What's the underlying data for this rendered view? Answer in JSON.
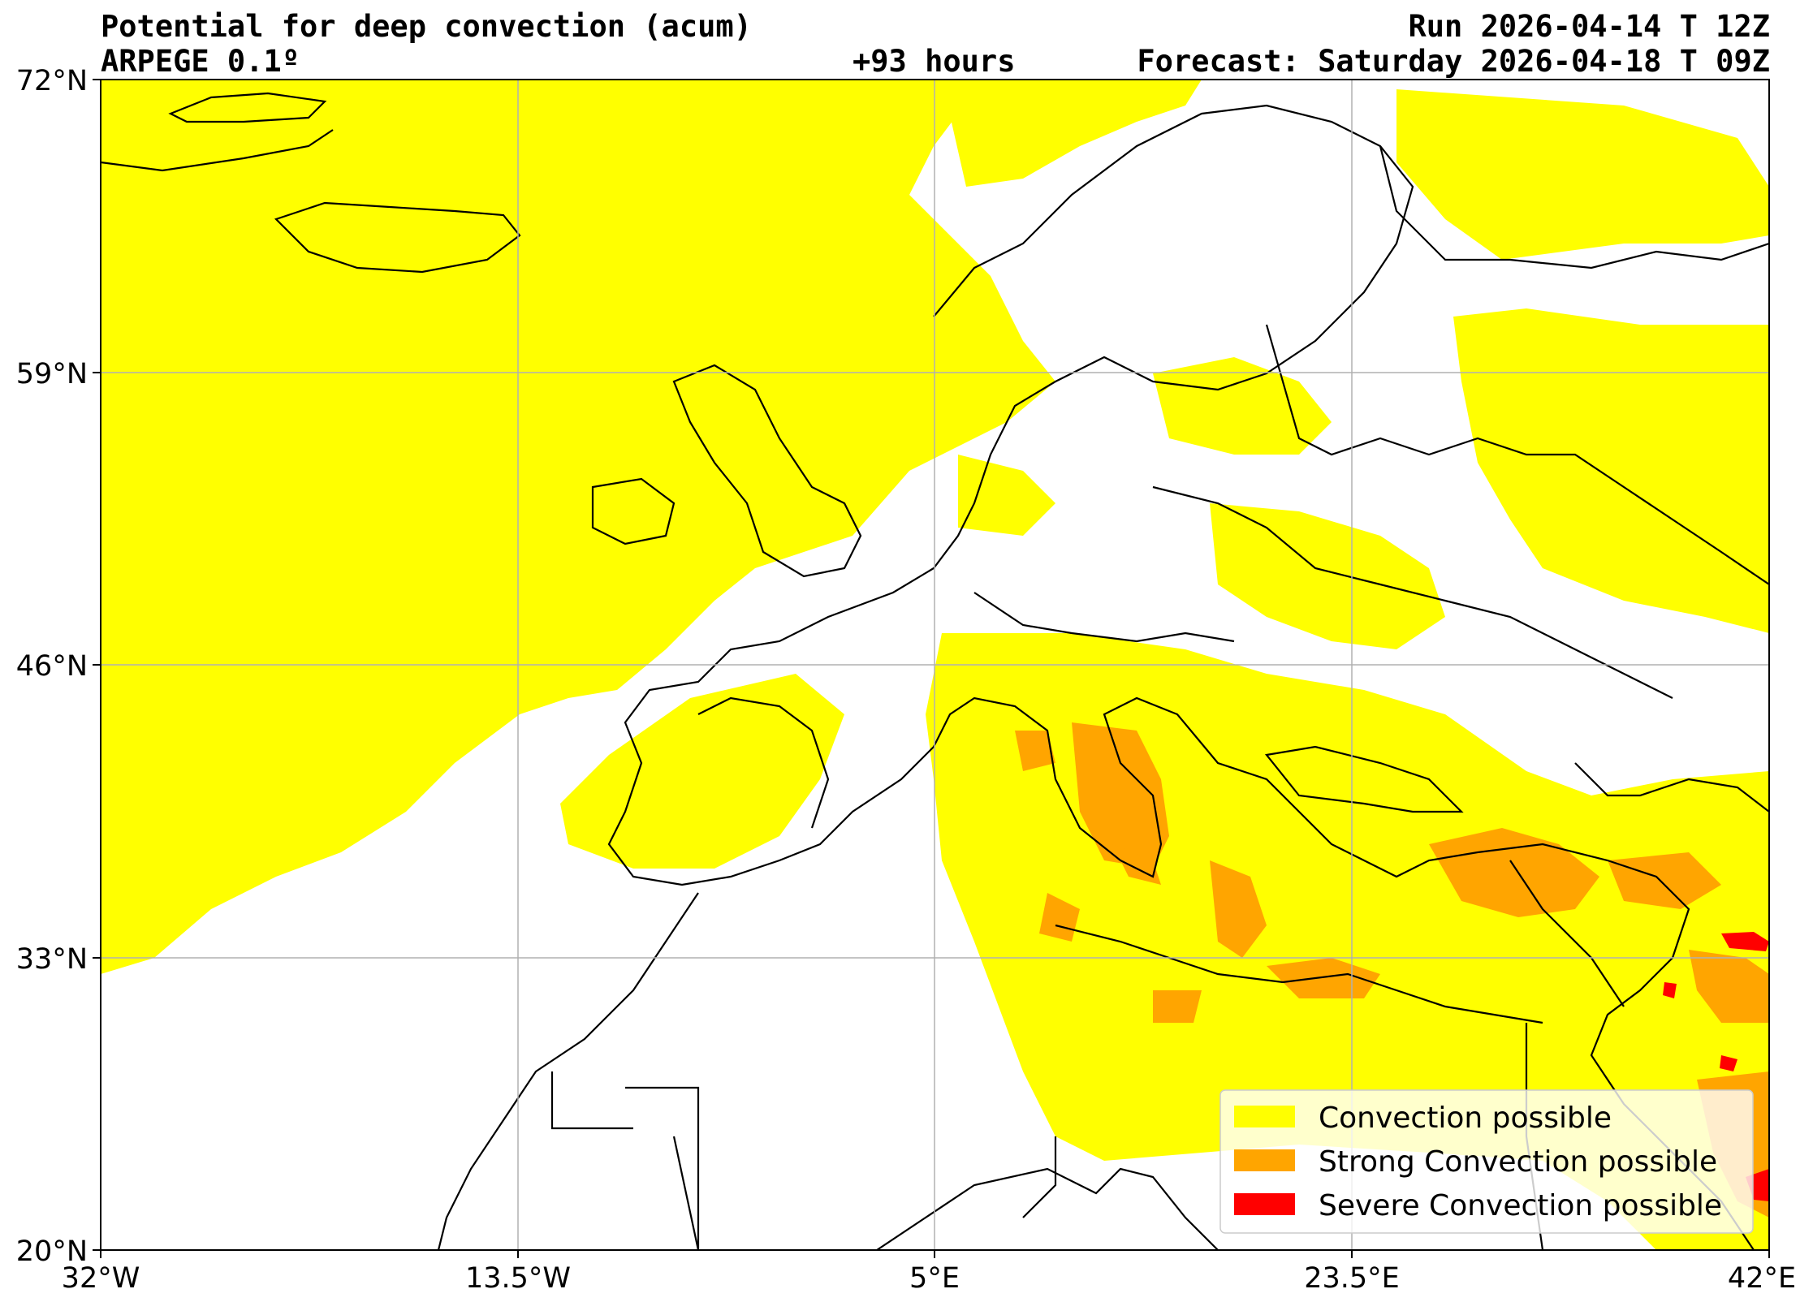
{
  "header": {
    "title": "Potential for deep convection (acum)",
    "model": "ARPEGE 0.1º",
    "run": "Run 2026-04-14 T 12Z",
    "lead": "+93 hours",
    "forecast": "Forecast: Saturday 2026-04-18 T 09Z"
  },
  "axes": {
    "lat_ticks": [
      "72°N",
      "59°N",
      "46°N",
      "33°N",
      "20°N"
    ],
    "lon_ticks": [
      "32°W",
      "13.5°W",
      "5°E",
      "23.5°E",
      "42°E"
    ],
    "lat_range": [
      20,
      72
    ],
    "lon_range": [
      -32,
      42
    ],
    "grid": true
  },
  "legend": {
    "placement": "lower-right",
    "items": [
      {
        "label": "Convection possible",
        "color": "#ffff00"
      },
      {
        "label": "Strong Convection possible",
        "color": "#ffa500"
      },
      {
        "label": "Severe Convection possible",
        "color": "#ff0000"
      }
    ]
  },
  "colors": {
    "convection": "#ffff00",
    "strong": "#ffa500",
    "severe": "#ff0000",
    "coastline": "#000000",
    "grid": "#b0b0b0"
  }
}
